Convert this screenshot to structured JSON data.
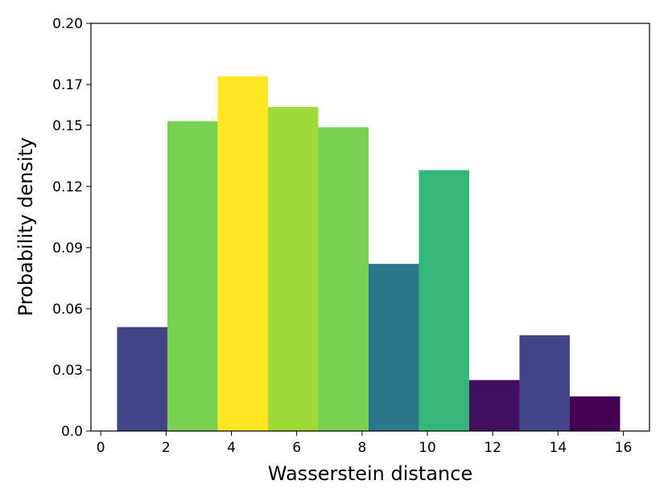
{
  "chart_data": {
    "type": "bar",
    "title": "",
    "xlabel": "Wasserstein distance",
    "ylabel": "Probability density",
    "xlim": [
      -0.3,
      16.8
    ],
    "ylim": [
      0,
      0.2
    ],
    "xticks": [
      0,
      2,
      4,
      6,
      8,
      10,
      12,
      14,
      16
    ],
    "xtick_labels": [
      "0",
      "2",
      "4",
      "6",
      "8",
      "10",
      "12",
      "14",
      "16"
    ],
    "yticks": [
      0,
      0.03,
      0.06,
      0.09,
      0.12,
      0.15,
      0.17,
      0.2
    ],
    "ytick_labels": [
      "0.0",
      "0.03",
      "0.06",
      "0.09",
      "0.12",
      "0.15",
      "0.17",
      "0.20"
    ],
    "grid": false,
    "bins": [
      {
        "x0": 0.5,
        "x1": 2.04,
        "value": 0.051,
        "color": "#414487"
      },
      {
        "x0": 2.04,
        "x1": 3.58,
        "value": 0.152,
        "color": "#7ad151"
      },
      {
        "x0": 3.58,
        "x1": 5.12,
        "value": 0.174,
        "color": "#fde725"
      },
      {
        "x0": 5.12,
        "x1": 6.66,
        "value": 0.159,
        "color": "#a0da39"
      },
      {
        "x0": 6.66,
        "x1": 8.2,
        "value": 0.149,
        "color": "#7ad151"
      },
      {
        "x0": 8.2,
        "x1": 9.74,
        "value": 0.082,
        "color": "#2a788e"
      },
      {
        "x0": 9.74,
        "x1": 11.28,
        "value": 0.128,
        "color": "#35b779"
      },
      {
        "x0": 11.28,
        "x1": 12.82,
        "value": 0.025,
        "color": "#440f5f"
      },
      {
        "x0": 12.82,
        "x1": 14.36,
        "value": 0.047,
        "color": "#414487"
      },
      {
        "x0": 14.36,
        "x1": 15.9,
        "value": 0.017,
        "color": "#440154"
      }
    ]
  }
}
